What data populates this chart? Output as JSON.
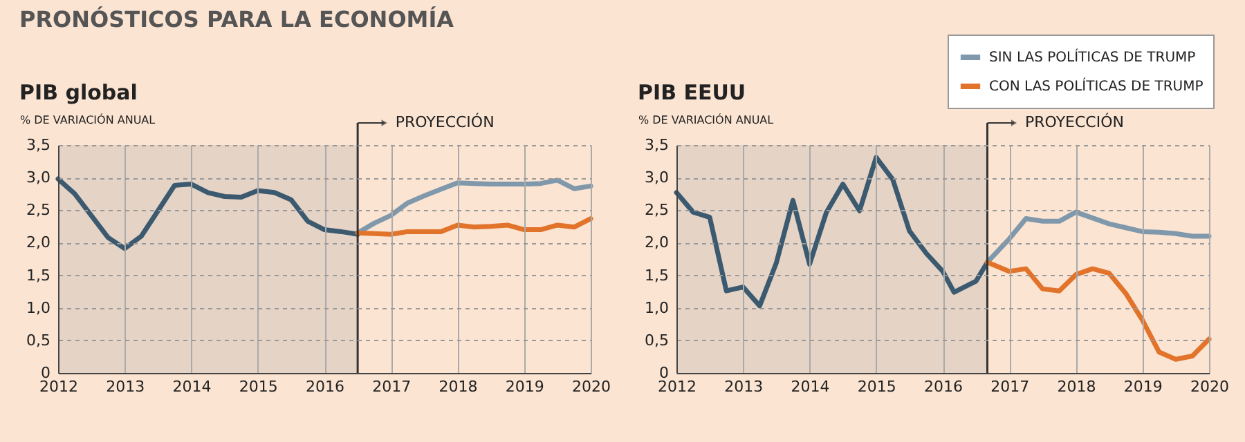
{
  "chart_data": [
    {
      "type": "line",
      "title": "PIB global",
      "ylabel": "% DE VARIACIÓN ANUAL",
      "annotations": [
        "PRONÓSTICOS PARA LA ECONOMÍA"
      ],
      "xlim": [
        2012,
        2020
      ],
      "xticks": [
        2012,
        2013,
        2014,
        2015,
        2016,
        2017,
        2018,
        2019,
        2020
      ],
      "ylim": [
        0,
        3.5
      ],
      "yticks": [
        {
          "value": 0,
          "label": "0"
        },
        {
          "value": 0.5,
          "label": "0,5"
        },
        {
          "value": 1,
          "label": "1,0"
        },
        {
          "value": 1.5,
          "label": "1,5"
        },
        {
          "value": 2,
          "label": "2,0"
        },
        {
          "value": 2.5,
          "label": "2,5"
        },
        {
          "value": 3,
          "label": "3,0"
        },
        {
          "value": 3.5,
          "label": "3,5"
        }
      ],
      "grid": true,
      "line_style": "solid",
      "marker": "none",
      "ref_lines": [
        {
          "axis": "x",
          "value": 2016.5,
          "label": "PROYECCIÓN",
          "color": "#333333"
        }
      ],
      "bands": [
        {
          "axis": "x",
          "from": 2012,
          "to": 2016.5,
          "color": "#e5d3c5"
        }
      ],
      "series": [
        {
          "color": "#3b5a70",
          "x": [
            2012,
            2012.25,
            2012.75,
            2013,
            2013.25,
            2013.5,
            2013.75,
            2014,
            2014.25,
            2014.5,
            2014.75,
            2015,
            2015.25,
            2015.5,
            2015.75,
            2016,
            2016.25,
            2016.5
          ],
          "values": [
            2.98,
            2.75,
            2.08,
            1.91,
            2.1,
            2.49,
            2.88,
            2.9,
            2.77,
            2.71,
            2.7,
            2.8,
            2.77,
            2.66,
            2.33,
            2.2,
            2.17,
            2.13
          ]
        },
        {
          "color": "#7f98ab",
          "x": [
            2016.5,
            2016.75,
            2017,
            2017.25,
            2017.5,
            2017.75,
            2018,
            2018.25,
            2018.5,
            2018.75,
            2019,
            2019.25,
            2019.5,
            2019.75,
            2020
          ],
          "values": [
            2.15,
            2.3,
            2.42,
            2.61,
            2.72,
            2.82,
            2.92,
            2.91,
            2.9,
            2.9,
            2.9,
            2.91,
            2.96,
            2.83,
            2.87
          ]
        },
        {
          "color": "#e2732a",
          "x": [
            2016.5,
            2016.75,
            2017,
            2017.25,
            2017.5,
            2017.75,
            2018,
            2018.25,
            2018.5,
            2018.75,
            2019,
            2019.25,
            2019.5,
            2019.75,
            2020
          ],
          "values": [
            2.15,
            2.14,
            2.13,
            2.17,
            2.17,
            2.17,
            2.27,
            2.24,
            2.25,
            2.27,
            2.2,
            2.2,
            2.27,
            2.24,
            2.37
          ]
        }
      ]
    },
    {
      "type": "line",
      "title": "PIB EEUU",
      "ylabel": "% DE VARIACIÓN ANUAL",
      "xlim": [
        2012,
        2020
      ],
      "xticks": [
        2012,
        2013,
        2014,
        2015,
        2016,
        2017,
        2018,
        2019,
        2020
      ],
      "ylim": [
        0,
        3.5
      ],
      "yticks": [
        {
          "value": 0,
          "label": "0"
        },
        {
          "value": 0.5,
          "label": "0,5"
        },
        {
          "value": 1,
          "label": "1,0"
        },
        {
          "value": 1.5,
          "label": "1,5"
        },
        {
          "value": 2,
          "label": "2,0"
        },
        {
          "value": 2.5,
          "label": "2,5"
        },
        {
          "value": 3,
          "label": "3,0"
        },
        {
          "value": 3.5,
          "label": "3,5"
        }
      ],
      "grid": true,
      "line_style": "solid",
      "marker": "none",
      "legend": "top right",
      "ref_lines": [
        {
          "axis": "x",
          "value": 2016.67,
          "label": "PROYECCIÓN",
          "color": "#333333"
        }
      ],
      "bands": [
        {
          "axis": "x",
          "from": 2012,
          "to": 2016.67,
          "color": "#e5d3c5"
        }
      ],
      "series": [
        {
          "color": "#3b5a70",
          "x": [
            2012,
            2012.25,
            2012.5,
            2012.75,
            2013,
            2013.25,
            2013.5,
            2013.75,
            2014,
            2014.25,
            2014.5,
            2014.75,
            2015,
            2015.25,
            2015.5,
            2015.75,
            2016,
            2016.17,
            2016.5,
            2016.67
          ],
          "values": [
            2.77,
            2.47,
            2.39,
            1.26,
            1.32,
            1.03,
            1.69,
            2.65,
            1.67,
            2.46,
            2.9,
            2.49,
            3.31,
            2.97,
            2.18,
            1.84,
            1.56,
            1.24,
            1.41,
            1.7
          ]
        },
        {
          "name": "SIN LAS POLÍTICAS DE TRUMP",
          "color": "#7f98ab",
          "x": [
            2016.67,
            2017,
            2017.25,
            2017.5,
            2017.75,
            2018,
            2018.25,
            2018.5,
            2018.75,
            2019,
            2019.25,
            2019.5,
            2019.75,
            2020
          ],
          "values": [
            1.7,
            2.06,
            2.37,
            2.33,
            2.33,
            2.47,
            2.38,
            2.29,
            2.23,
            2.17,
            2.16,
            2.14,
            2.1,
            2.1
          ]
        },
        {
          "name": "CON LAS POLÍTICAS DE TRUMP",
          "color": "#e2732a",
          "x": [
            2016.67,
            2017,
            2017.25,
            2017.5,
            2017.75,
            2018,
            2018.25,
            2018.5,
            2018.75,
            2019,
            2019.25,
            2019.5,
            2019.75,
            2020
          ],
          "values": [
            1.7,
            1.56,
            1.6,
            1.29,
            1.26,
            1.51,
            1.6,
            1.53,
            1.22,
            0.81,
            0.32,
            0.21,
            0.26,
            0.52
          ]
        }
      ]
    }
  ]
}
